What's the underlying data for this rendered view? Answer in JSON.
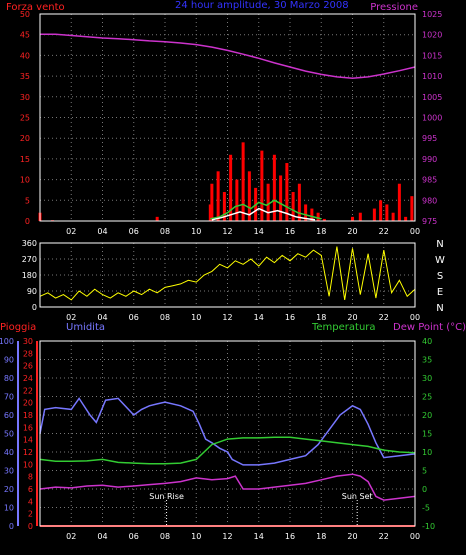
{
  "chart_data": [
    {
      "type": "line",
      "title": "24 hour amplitude, 30 Marzo 2008",
      "left_label": "Forza vento",
      "right_label": "Pressione",
      "x_ticks": [
        "02",
        "04",
        "06",
        "08",
        "10",
        "12",
        "14",
        "16",
        "18",
        "20",
        "22",
        "00"
      ],
      "left_axis": {
        "ylim": [
          0,
          50
        ],
        "ticks": [
          0,
          5,
          10,
          15,
          20,
          25,
          30,
          35,
          40,
          45,
          50
        ]
      },
      "right_axis": {
        "ylim": [
          975,
          1025
        ],
        "ticks": [
          975,
          980,
          985,
          990,
          995,
          1000,
          1005,
          1010,
          1015,
          1020,
          1025
        ]
      },
      "grid": true,
      "series": [
        {
          "axis": "right",
          "color": "#cc33cc",
          "points": [
            [
              0,
              1020.1
            ],
            [
              1,
              1020.1
            ],
            [
              2,
              1019.8
            ],
            [
              3,
              1019.5
            ],
            [
              4,
              1019.2
            ],
            [
              5,
              1019.0
            ],
            [
              6,
              1018.8
            ],
            [
              7,
              1018.5
            ],
            [
              8,
              1018.3
            ],
            [
              9,
              1018.0
            ],
            [
              10,
              1017.6
            ],
            [
              11,
              1017.0
            ],
            [
              12,
              1016.2
            ],
            [
              13,
              1015.3
            ],
            [
              14,
              1014.3
            ],
            [
              15,
              1013.2
            ],
            [
              16,
              1012.2
            ],
            [
              17,
              1011.2
            ],
            [
              18,
              1010.4
            ],
            [
              19,
              1009.8
            ],
            [
              20,
              1009.5
            ],
            [
              21,
              1009.8
            ],
            [
              22,
              1010.5
            ],
            [
              23,
              1011.3
            ],
            [
              24,
              1012.2
            ]
          ]
        },
        {
          "axis": "left",
          "color": "#ff0000",
          "style": "bars",
          "points": [
            [
              0,
              2
            ],
            [
              0.8,
              0.2
            ],
            [
              7.5,
              1
            ],
            [
              10.9,
              4
            ],
            [
              11,
              9
            ],
            [
              11.4,
              12
            ],
            [
              11.8,
              7
            ],
            [
              12.2,
              16
            ],
            [
              12.6,
              10
            ],
            [
              13.0,
              19
            ],
            [
              13.4,
              12
            ],
            [
              13.8,
              8
            ],
            [
              14.2,
              17
            ],
            [
              14.6,
              9
            ],
            [
              15.0,
              16
            ],
            [
              15.4,
              11
            ],
            [
              15.8,
              14
            ],
            [
              16.2,
              7
            ],
            [
              16.6,
              9
            ],
            [
              17.0,
              4
            ],
            [
              17.4,
              3
            ],
            [
              17.8,
              2
            ],
            [
              18.2,
              0.5
            ],
            [
              20.0,
              1
            ],
            [
              20.5,
              2
            ],
            [
              21.4,
              3
            ],
            [
              21.8,
              5
            ],
            [
              22.2,
              4
            ],
            [
              22.6,
              2
            ],
            [
              23.0,
              9
            ],
            [
              23.4,
              1
            ],
            [
              23.8,
              6
            ]
          ]
        },
        {
          "axis": "left",
          "color": "#33cc33",
          "points": [
            [
              10.9,
              0.5
            ],
            [
              11.5,
              1
            ],
            [
              12.0,
              2
            ],
            [
              12.5,
              3.5
            ],
            [
              13.0,
              4
            ],
            [
              13.5,
              3
            ],
            [
              14.0,
              4.5
            ],
            [
              14.5,
              3.8
            ],
            [
              15.0,
              5
            ],
            [
              15.5,
              4
            ],
            [
              16.0,
              3
            ],
            [
              16.5,
              2
            ],
            [
              17.0,
              1.5
            ],
            [
              17.5,
              1
            ],
            [
              18.0,
              0.5
            ]
          ]
        },
        {
          "axis": "left",
          "color": "#ffffff",
          "points": [
            [
              11.0,
              0.3
            ],
            [
              11.6,
              0.8
            ],
            [
              12.2,
              1.5
            ],
            [
              12.8,
              2.2
            ],
            [
              13.4,
              1.5
            ],
            [
              14.0,
              3
            ],
            [
              14.6,
              2
            ],
            [
              15.2,
              2.5
            ],
            [
              15.8,
              1.8
            ],
            [
              16.4,
              1
            ],
            [
              17.0,
              0.6
            ],
            [
              17.6,
              0.3
            ]
          ]
        }
      ]
    },
    {
      "type": "line",
      "xlabel": "",
      "ylim": [
        0,
        360
      ],
      "y_ticks": [
        0,
        90,
        180,
        270,
        360
      ],
      "right_ticks": [
        "N",
        "W",
        "S",
        "E",
        "N"
      ],
      "x_ticks": [
        "02",
        "04",
        "06",
        "08",
        "10",
        "12",
        "14",
        "16",
        "18",
        "20",
        "22",
        "00"
      ],
      "grid": true,
      "series": [
        {
          "color": "#ffff00",
          "points": [
            [
              0,
              60
            ],
            [
              0.5,
              80
            ],
            [
              1,
              50
            ],
            [
              1.5,
              70
            ],
            [
              2,
              40
            ],
            [
              2.5,
              90
            ],
            [
              3,
              60
            ],
            [
              3.5,
              100
            ],
            [
              4,
              70
            ],
            [
              4.5,
              50
            ],
            [
              5,
              80
            ],
            [
              5.5,
              60
            ],
            [
              6,
              90
            ],
            [
              6.5,
              70
            ],
            [
              7,
              100
            ],
            [
              7.5,
              80
            ],
            [
              8,
              110
            ],
            [
              8.5,
              120
            ],
            [
              9,
              130
            ],
            [
              9.5,
              150
            ],
            [
              10,
              140
            ],
            [
              10.5,
              180
            ],
            [
              11,
              200
            ],
            [
              11.5,
              240
            ],
            [
              12,
              220
            ],
            [
              12.5,
              260
            ],
            [
              13,
              240
            ],
            [
              13.5,
              270
            ],
            [
              14,
              230
            ],
            [
              14.5,
              280
            ],
            [
              15,
              250
            ],
            [
              15.5,
              290
            ],
            [
              16,
              260
            ],
            [
              16.5,
              300
            ],
            [
              17,
              280
            ],
            [
              17.5,
              320
            ],
            [
              18,
              290
            ],
            [
              18.5,
              60
            ],
            [
              19,
              340
            ],
            [
              19.5,
              40
            ],
            [
              20,
              330
            ],
            [
              20.5,
              70
            ],
            [
              21,
              300
            ],
            [
              21.5,
              50
            ],
            [
              22,
              320
            ],
            [
              22.5,
              80
            ],
            [
              23,
              150
            ],
            [
              23.5,
              60
            ],
            [
              24,
              100
            ]
          ]
        }
      ]
    },
    {
      "type": "line",
      "left_labels": [
        "Pioggia",
        "Umidita"
      ],
      "right_labels": [
        "Temperatura",
        "Dew Point (°C)"
      ],
      "humidity_axis": {
        "ylim": [
          0,
          100
        ],
        "ticks": [
          0,
          10,
          20,
          30,
          40,
          50,
          60,
          70,
          80,
          90,
          100
        ]
      },
      "rain_axis": {
        "ylim": [
          0,
          30
        ],
        "ticks": [
          0,
          2,
          4,
          6,
          8,
          10,
          12,
          14,
          16,
          18,
          20,
          22,
          24,
          26,
          28,
          30
        ]
      },
      "temperature_axis": {
        "ylim": [
          -10,
          40
        ],
        "ticks": [
          -10,
          -5,
          0,
          5,
          10,
          15,
          20,
          25,
          30,
          35,
          40
        ]
      },
      "x_ticks": [
        "02",
        "04",
        "06",
        "08",
        "10",
        "12",
        "14",
        "16",
        "18",
        "20",
        "22",
        "00"
      ],
      "annotations": [
        {
          "x": 8.1,
          "text": "Sun Rise"
        },
        {
          "x": 20.3,
          "text": "Sun Set"
        }
      ],
      "grid": true,
      "series": [
        {
          "axis": "humidity",
          "color": "#7777ff",
          "points": [
            [
              0,
              50
            ],
            [
              0.3,
              63
            ],
            [
              1,
              64
            ],
            [
              2,
              63
            ],
            [
              2.5,
              69
            ],
            [
              3.2,
              60
            ],
            [
              3.6,
              56
            ],
            [
              4.2,
              68
            ],
            [
              5,
              69
            ],
            [
              6,
              60
            ],
            [
              6.5,
              63
            ],
            [
              7,
              65
            ],
            [
              7.5,
              66
            ],
            [
              8,
              67
            ],
            [
              9,
              65
            ],
            [
              9.8,
              62
            ],
            [
              10.2,
              55
            ],
            [
              10.6,
              47
            ],
            [
              11,
              45
            ],
            [
              11.5,
              42
            ],
            [
              12,
              40
            ],
            [
              12.3,
              36
            ],
            [
              13,
              33
            ],
            [
              14,
              33
            ],
            [
              15,
              34
            ],
            [
              16,
              36
            ],
            [
              17,
              38
            ],
            [
              17.8,
              44
            ],
            [
              18.5,
              52
            ],
            [
              19.2,
              60
            ],
            [
              20,
              65
            ],
            [
              20.5,
              63
            ],
            [
              21.0,
              55
            ],
            [
              21.5,
              45
            ],
            [
              22,
              37
            ],
            [
              23,
              38
            ],
            [
              24,
              39
            ]
          ]
        },
        {
          "axis": "temperature",
          "color": "#33cc33",
          "points": [
            [
              0,
              8
            ],
            [
              1,
              7.5
            ],
            [
              2,
              7.5
            ],
            [
              3,
              7.6
            ],
            [
              4,
              8
            ],
            [
              5,
              7.2
            ],
            [
              6,
              7
            ],
            [
              7,
              6.8
            ],
            [
              8,
              6.8
            ],
            [
              9,
              7
            ],
            [
              10,
              8
            ],
            [
              10.5,
              10
            ],
            [
              11,
              12
            ],
            [
              12,
              13.5
            ],
            [
              13,
              13.8
            ],
            [
              14,
              13.8
            ],
            [
              15,
              14
            ],
            [
              16,
              14
            ],
            [
              17,
              13.5
            ],
            [
              18,
              13
            ],
            [
              19,
              12.5
            ],
            [
              20,
              12
            ],
            [
              21,
              11.5
            ],
            [
              22,
              10.5
            ],
            [
              23,
              10
            ],
            [
              24,
              9.8
            ]
          ]
        },
        {
          "axis": "temperature",
          "color": "#cc33cc",
          "points": [
            [
              0,
              0
            ],
            [
              1,
              0.5
            ],
            [
              2,
              0.3
            ],
            [
              3,
              0.8
            ],
            [
              4,
              1
            ],
            [
              5,
              0.5
            ],
            [
              6,
              0.8
            ],
            [
              7,
              1.2
            ],
            [
              8,
              1.5
            ],
            [
              9,
              2
            ],
            [
              10,
              3
            ],
            [
              11,
              2.5
            ],
            [
              12,
              2.8
            ],
            [
              12.5,
              3.5
            ],
            [
              13,
              0
            ],
            [
              14,
              0
            ],
            [
              15,
              0.5
            ],
            [
              16,
              1
            ],
            [
              17,
              1.5
            ],
            [
              18,
              2.5
            ],
            [
              19,
              3.5
            ],
            [
              20,
              4
            ],
            [
              20.5,
              3.5
            ],
            [
              21,
              2
            ],
            [
              21.5,
              -2
            ],
            [
              22,
              -3
            ],
            [
              23,
              -2.5
            ],
            [
              24,
              -2
            ]
          ]
        },
        {
          "axis": "rain",
          "color": "#ff0000",
          "points": [
            [
              0,
              0
            ],
            [
              24,
              0
            ]
          ]
        }
      ]
    }
  ]
}
